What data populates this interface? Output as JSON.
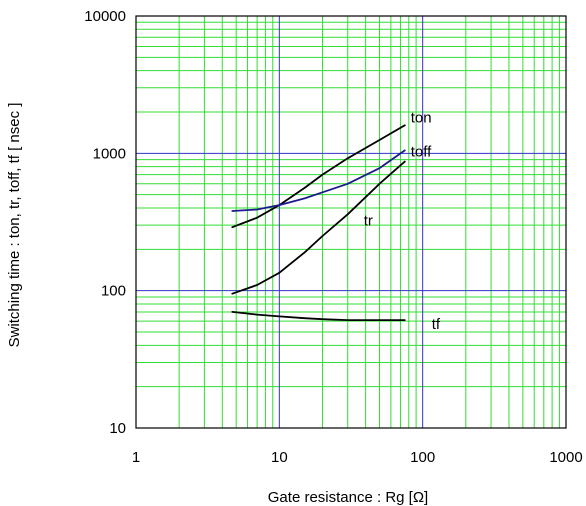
{
  "chart_data": {
    "type": "line",
    "xscale": "log",
    "yscale": "log",
    "xlim": [
      1,
      1000
    ],
    "ylim": [
      10,
      10000
    ],
    "xlabel": "Gate resistance : Rg [Ω]",
    "ylabel": "Switching time  :  ton, tr, toff, tf  [ nsec ]",
    "x_ticks": [
      1,
      10,
      100,
      1000
    ],
    "x_tick_labels": [
      "1",
      "10",
      "100",
      "1000"
    ],
    "y_ticks": [
      10,
      100,
      1000,
      10000
    ],
    "y_tick_labels": [
      "10",
      "100",
      "1000",
      "10000"
    ],
    "grid": true,
    "colors": {
      "minor_grid": "#33dd33",
      "major_grid": "#3333cc",
      "frame": "#000000",
      "ton": "#000000",
      "toff": "#1a1a8c",
      "tr": "#000000",
      "tf": "#000000"
    },
    "series": [
      {
        "name": "ton",
        "x": [
          4.7,
          7,
          10,
          15,
          20,
          30,
          50,
          75
        ],
        "y": [
          290,
          340,
          420,
          560,
          700,
          920,
          1250,
          1600
        ]
      },
      {
        "name": "toff",
        "x": [
          4.7,
          7,
          10,
          15,
          20,
          30,
          50,
          75
        ],
        "y": [
          380,
          390,
          420,
          470,
          520,
          600,
          780,
          1050
        ]
      },
      {
        "name": "tr",
        "x": [
          4.7,
          7,
          10,
          15,
          20,
          30,
          50,
          75
        ],
        "y": [
          95,
          110,
          135,
          190,
          250,
          360,
          600,
          870
        ]
      },
      {
        "name": "tf",
        "x": [
          4.7,
          7,
          10,
          15,
          20,
          30,
          50,
          75
        ],
        "y": [
          70,
          67,
          65,
          63,
          62,
          61,
          61,
          61
        ]
      }
    ]
  }
}
